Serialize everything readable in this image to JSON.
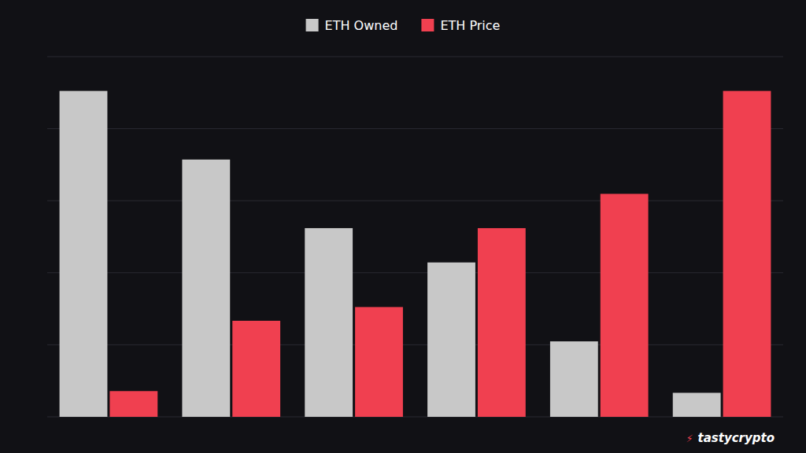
{
  "chart_data": {
    "type": "bar",
    "categories": [
      null,
      null,
      null,
      null,
      null,
      null
    ],
    "series": [
      {
        "name": "ETH Owned",
        "color": "#c8c8c8",
        "values": [
          9.5,
          7.5,
          5.5,
          4.5,
          2.2,
          0.7
        ]
      },
      {
        "name": "ETH Price",
        "color": "#f04050",
        "values": [
          0.75,
          2.8,
          3.2,
          5.5,
          6.5,
          9.5
        ]
      }
    ],
    "ylim": [
      0,
      10.5
    ],
    "yticks": [
      0,
      2.1,
      4.2,
      6.3,
      8.4,
      10.5
    ],
    "grid": true,
    "legend": "top",
    "tick_labels": false,
    "annotations": [
      "⚡",
      "tastycrypto"
    ]
  }
}
